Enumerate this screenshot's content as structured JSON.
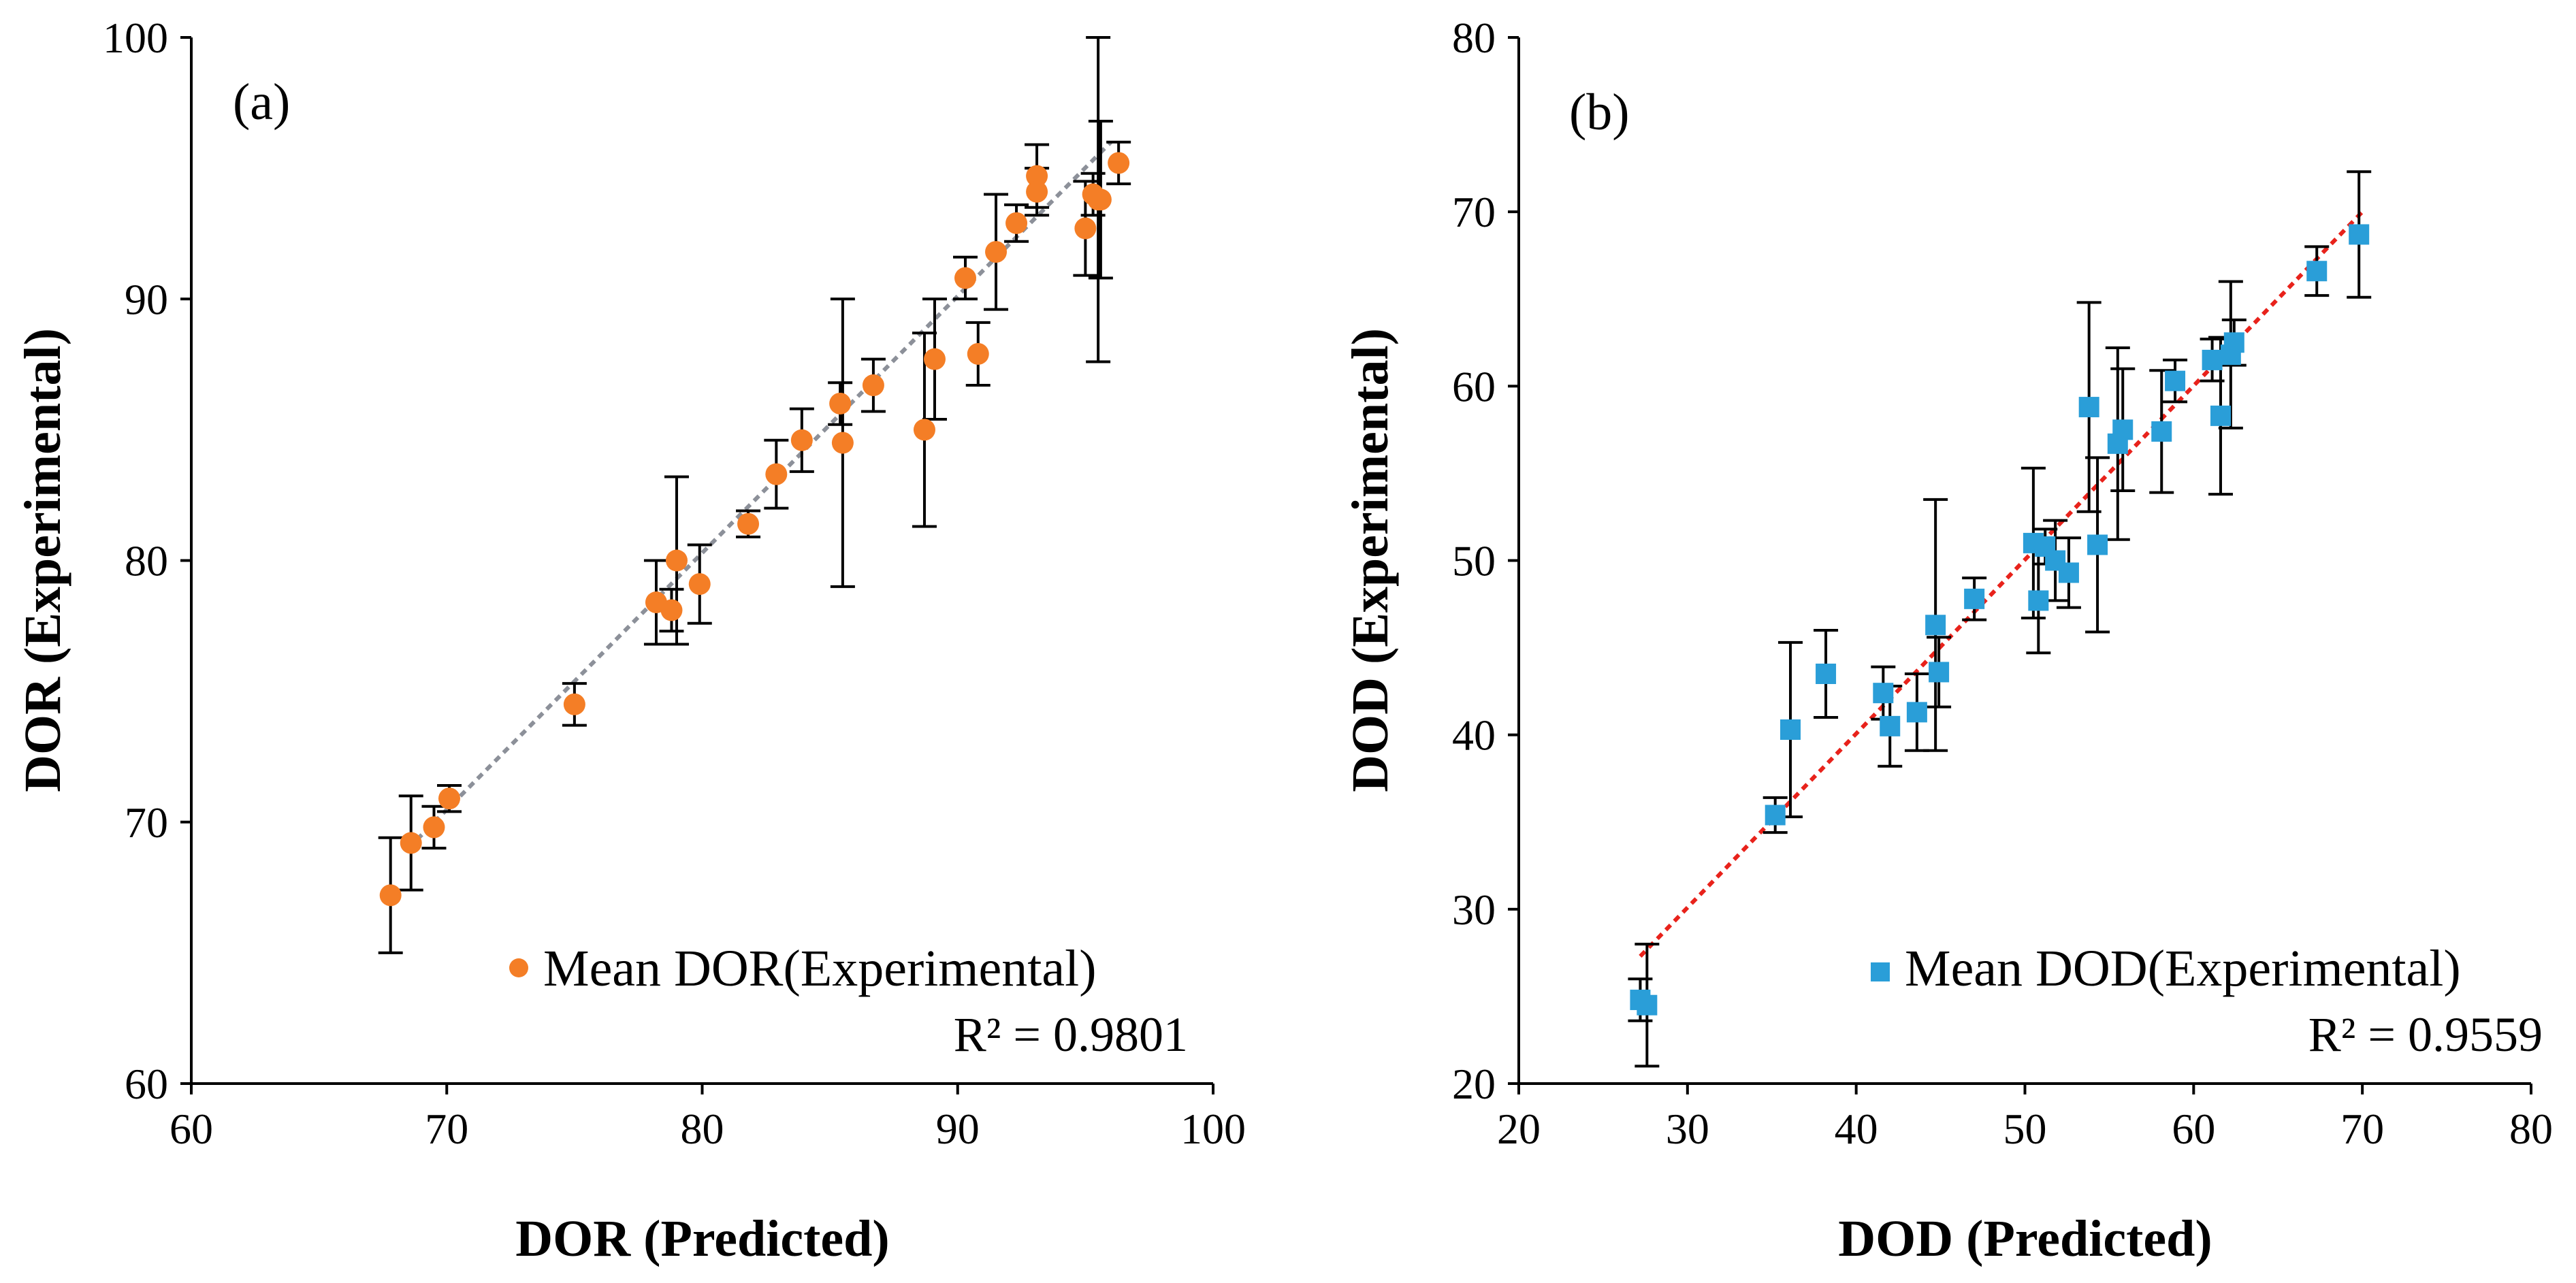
{
  "chart_data": [
    {
      "type": "scatter",
      "panel_label": "(a)",
      "title": "",
      "xlabel": "DOR (Predicted)",
      "ylabel": "DOR (Experimental)",
      "xlim": [
        60,
        100
      ],
      "ylim": [
        60,
        100
      ],
      "x_ticks": [
        60,
        70,
        80,
        90,
        100
      ],
      "y_ticks": [
        60,
        70,
        80,
        90,
        100
      ],
      "x_tick_labels": [
        "60",
        "70",
        "80",
        "90",
        "100"
      ],
      "y_tick_labels": [
        "60",
        "70",
        "80",
        "90",
        "100"
      ],
      "grid": false,
      "legend": {
        "label": "Mean DOR(Experimental)",
        "position": "bottom-right"
      },
      "r_squared_text": "R² = 0.9801",
      "marker": "circle",
      "color": "#F47E26",
      "trendline": {
        "color": "#8C9099",
        "from": [
          68.5,
          69.0
        ],
        "to": [
          96.0,
          96.0
        ]
      },
      "points": [
        {
          "x": 67.8,
          "y": 67.2,
          "err": 2.2
        },
        {
          "x": 68.6,
          "y": 69.2,
          "err": 1.8
        },
        {
          "x": 69.5,
          "y": 69.8,
          "err": 0.8
        },
        {
          "x": 70.1,
          "y": 70.9,
          "err": 0.5
        },
        {
          "x": 75.0,
          "y": 74.5,
          "err": 0.8
        },
        {
          "x": 78.2,
          "y": 78.4,
          "err": 1.6
        },
        {
          "x": 78.8,
          "y": 78.1,
          "err": 0.8
        },
        {
          "x": 79.0,
          "y": 80.0,
          "err": 3.2
        },
        {
          "x": 79.9,
          "y": 79.1,
          "err": 1.5
        },
        {
          "x": 81.8,
          "y": 81.4,
          "err": 0.5
        },
        {
          "x": 82.9,
          "y": 83.3,
          "err": 1.3
        },
        {
          "x": 83.9,
          "y": 84.6,
          "err": 1.2
        },
        {
          "x": 85.5,
          "y": 84.5,
          "err": 5.5
        },
        {
          "x": 85.4,
          "y": 86.0,
          "err": 0.8
        },
        {
          "x": 86.7,
          "y": 86.7,
          "err": 1.0
        },
        {
          "x": 88.7,
          "y": 85.0,
          "err": 3.7
        },
        {
          "x": 89.1,
          "y": 87.7,
          "err": 2.3
        },
        {
          "x": 90.3,
          "y": 90.8,
          "err": 0.8
        },
        {
          "x": 90.8,
          "y": 87.9,
          "err": 1.2
        },
        {
          "x": 91.5,
          "y": 91.8,
          "err": 2.2
        },
        {
          "x": 92.3,
          "y": 92.9,
          "err": 0.7
        },
        {
          "x": 93.1,
          "y": 94.7,
          "err": 1.2
        },
        {
          "x": 93.1,
          "y": 94.1,
          "err": 0.9
        },
        {
          "x": 95.0,
          "y": 92.7,
          "err": 1.8
        },
        {
          "x": 95.3,
          "y": 94.0,
          "err": 0.8
        },
        {
          "x": 95.6,
          "y": 93.8,
          "err": 3.0
        },
        {
          "x": 95.5,
          "y": 93.8,
          "err": 6.2
        },
        {
          "x": 96.3,
          "y": 95.2,
          "err": 0.8
        }
      ]
    },
    {
      "type": "scatter",
      "panel_label": "(b)",
      "title": "",
      "xlabel": "DOD (Predicted)",
      "ylabel": "DOD (Experimental)",
      "xlim": [
        20,
        80
      ],
      "ylim": [
        20,
        80
      ],
      "x_ticks": [
        20,
        30,
        40,
        50,
        60,
        70,
        80
      ],
      "y_ticks": [
        20,
        30,
        40,
        50,
        60,
        70,
        80
      ],
      "x_tick_labels": [
        "20",
        "30",
        "40",
        "50",
        "60",
        "70",
        "80"
      ],
      "y_tick_labels": [
        "20",
        "30",
        "40",
        "50",
        "60",
        "70",
        "80"
      ],
      "grid": false,
      "legend": {
        "label": "Mean DOD(Experimental)",
        "position": "bottom-right"
      },
      "r_squared_text": "R² = 0.9559",
      "marker": "square",
      "color": "#2A9ED8",
      "trendline": {
        "color": "#E8221B",
        "from": [
          27.2,
          27.3
        ],
        "to": [
          70.0,
          70.0
        ]
      },
      "points": [
        {
          "x": 27.2,
          "y": 24.8,
          "err": 1.2
        },
        {
          "x": 27.6,
          "y": 24.5,
          "err": 3.5
        },
        {
          "x": 35.2,
          "y": 35.4,
          "err": 1.0
        },
        {
          "x": 36.1,
          "y": 40.3,
          "err": 5.0
        },
        {
          "x": 38.2,
          "y": 43.5,
          "err": 2.5
        },
        {
          "x": 41.6,
          "y": 42.4,
          "err": 1.5
        },
        {
          "x": 42.0,
          "y": 40.5,
          "err": 2.3
        },
        {
          "x": 43.6,
          "y": 41.3,
          "err": 2.2
        },
        {
          "x": 44.7,
          "y": 46.3,
          "err": 7.2
        },
        {
          "x": 44.9,
          "y": 43.6,
          "err": 2.0
        },
        {
          "x": 47.0,
          "y": 47.8,
          "err": 1.2
        },
        {
          "x": 50.5,
          "y": 51.0,
          "err": 4.3
        },
        {
          "x": 50.8,
          "y": 47.7,
          "err": 3.0
        },
        {
          "x": 51.2,
          "y": 50.8,
          "err": 1.0
        },
        {
          "x": 51.8,
          "y": 50.0,
          "err": 2.3
        },
        {
          "x": 52.6,
          "y": 49.3,
          "err": 2.0
        },
        {
          "x": 53.8,
          "y": 58.8,
          "err": 6.0
        },
        {
          "x": 54.3,
          "y": 50.9,
          "err": 5.0
        },
        {
          "x": 55.5,
          "y": 56.7,
          "err": 5.5
        },
        {
          "x": 55.8,
          "y": 57.5,
          "err": 3.5
        },
        {
          "x": 58.1,
          "y": 57.4,
          "err": 3.5
        },
        {
          "x": 58.9,
          "y": 60.3,
          "err": 1.2
        },
        {
          "x": 61.1,
          "y": 61.5,
          "err": 1.2
        },
        {
          "x": 61.6,
          "y": 58.3,
          "err": 4.5
        },
        {
          "x": 62.2,
          "y": 61.8,
          "err": 4.2
        },
        {
          "x": 62.4,
          "y": 62.5,
          "err": 1.3
        },
        {
          "x": 67.3,
          "y": 66.6,
          "err": 1.4
        },
        {
          "x": 69.8,
          "y": 68.7,
          "err": 3.6
        }
      ]
    }
  ]
}
